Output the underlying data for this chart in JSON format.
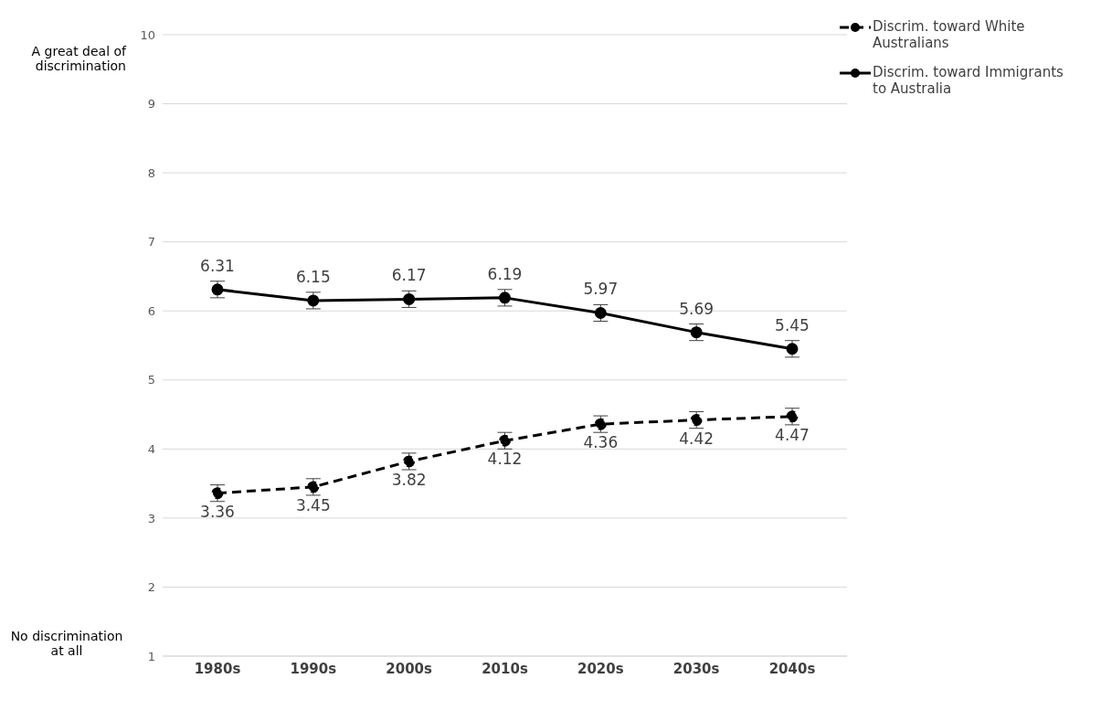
{
  "chart_data": {
    "type": "line",
    "categories": [
      "1980s",
      "1990s",
      "2000s",
      "2010s",
      "2020s",
      "2030s",
      "2040s"
    ],
    "series": [
      {
        "name": "Discrim. toward White Australians",
        "color": "#000000",
        "line_style": "dashed",
        "values": [
          3.36,
          3.45,
          3.82,
          4.12,
          4.36,
          4.42,
          4.47
        ],
        "errors": [
          0.12,
          0.12,
          0.12,
          0.12,
          0.12,
          0.12,
          0.12
        ]
      },
      {
        "name": "Discrim. toward Immigrants to Australia",
        "color": "#000000",
        "line_style": "solid",
        "values": [
          6.31,
          6.15,
          6.17,
          6.19,
          5.97,
          5.69,
          5.45
        ],
        "errors": [
          0.12,
          0.12,
          0.12,
          0.12,
          0.12,
          0.12,
          0.12
        ]
      }
    ],
    "ylim": [
      1,
      10
    ],
    "yticks": [
      1,
      2,
      3,
      4,
      5,
      6,
      7,
      8,
      9,
      10
    ],
    "grid": "y",
    "legend": "top right",
    "marker": "circle",
    "data_labels": true,
    "annotations": [
      "A great deal of discrimination",
      "No discrimination at all"
    ]
  }
}
